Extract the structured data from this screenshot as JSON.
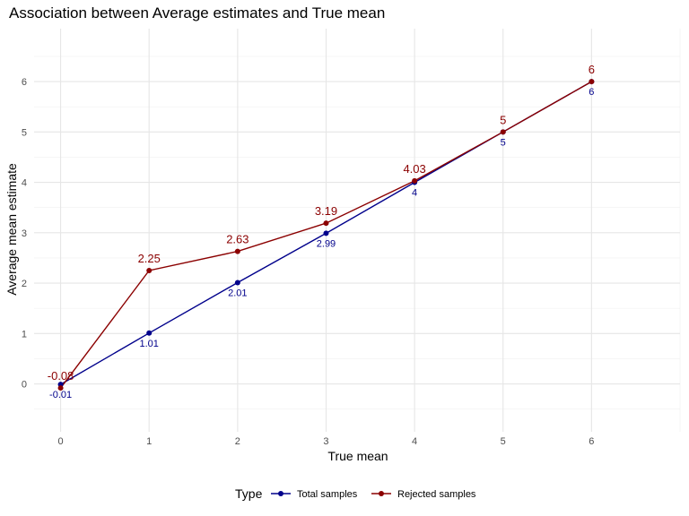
{
  "chart_data": {
    "type": "line",
    "title": "Association between Average estimates and True mean",
    "xlabel": "True mean",
    "ylabel": "Average mean estimate",
    "x": [
      0,
      1,
      2,
      3,
      4,
      5,
      6
    ],
    "xlim": [
      -0.3,
      7.0
    ],
    "ylim": [
      -0.95,
      7.05
    ],
    "xticks": [
      "0",
      "1",
      "2",
      "3",
      "4",
      "5",
      "6"
    ],
    "yticks": [
      "0",
      "1",
      "2",
      "3",
      "4",
      "5",
      "6"
    ],
    "grid": true,
    "legend_position": "bottom",
    "legend_title": "Type",
    "series": [
      {
        "name": "Total samples",
        "color": "#00008B",
        "values": [
          -0.01,
          1.01,
          2.01,
          2.99,
          4,
          5,
          6
        ],
        "labels": [
          "-0.01",
          "1.01",
          "2.01",
          "2.99",
          "4",
          "5",
          "6"
        ]
      },
      {
        "name": "Rejected samples",
        "color": "#8B0000",
        "values": [
          -0.08,
          2.25,
          2.63,
          3.19,
          4.03,
          5,
          6
        ],
        "labels": [
          "-0.08",
          "2.25",
          "2.63",
          "3.19",
          "4.03",
          "5",
          "6"
        ]
      }
    ]
  }
}
